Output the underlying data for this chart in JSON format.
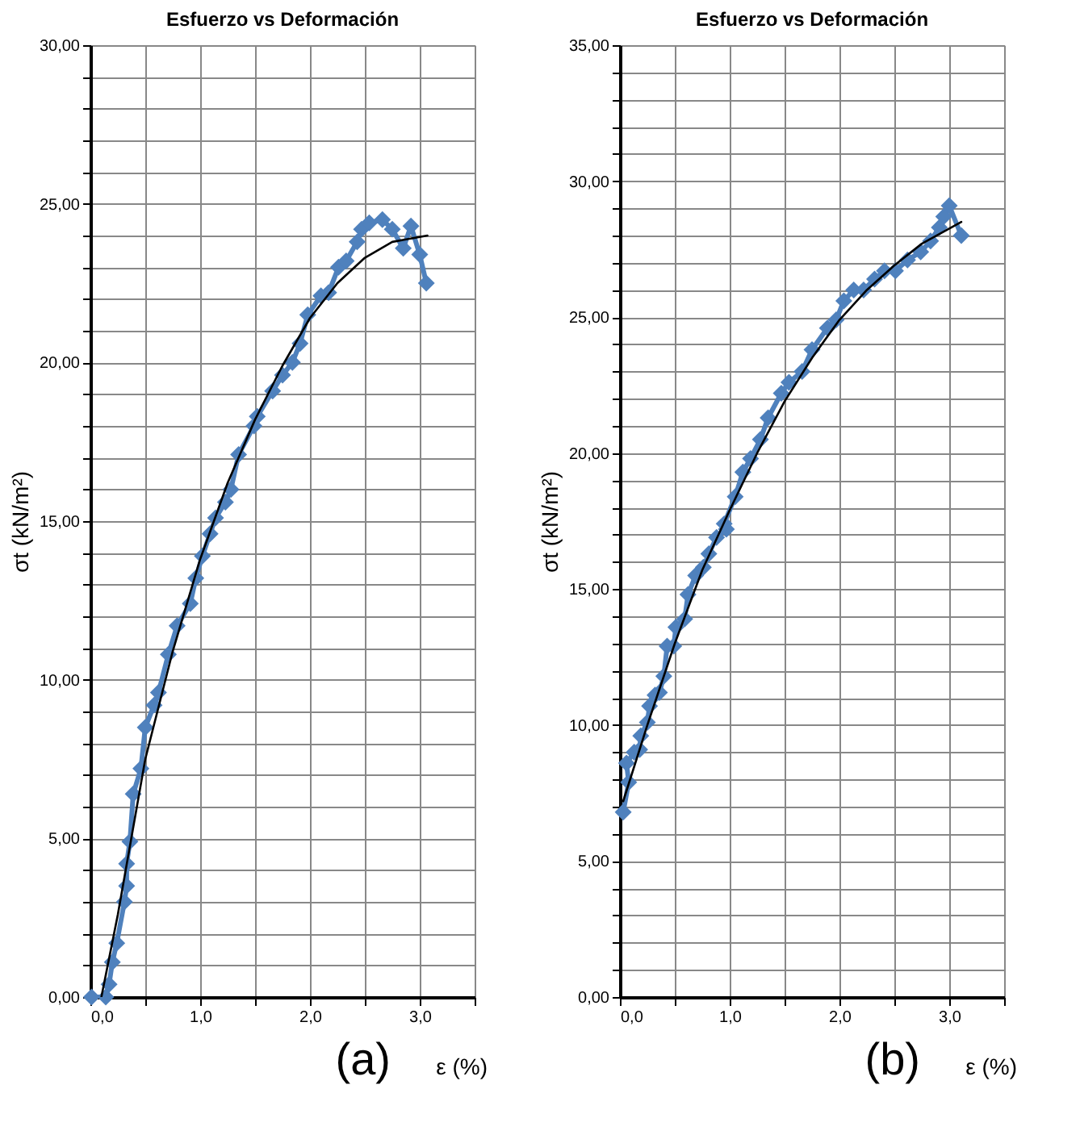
{
  "chart_data": [
    {
      "type": "line",
      "title": "Esfuerzo vs Deformación",
      "xlabel": "ε (%)",
      "ylabel": "σt (kN/m²)",
      "annotations": [
        "(a)"
      ],
      "xlim": [
        0,
        3.5
      ],
      "ylim": [
        0,
        30
      ],
      "xticks": [
        {
          "value": 0,
          "label": "0,0"
        },
        {
          "value": 0.5,
          "label": null
        },
        {
          "value": 1,
          "label": "1,0"
        },
        {
          "value": 1.5,
          "label": null
        },
        {
          "value": 2,
          "label": "2,0"
        },
        {
          "value": 2.5,
          "label": null
        },
        {
          "value": 3,
          "label": "3,0"
        },
        {
          "value": 3.5,
          "label": null
        }
      ],
      "yticks": [
        {
          "value": 0,
          "label": "0,00"
        },
        {
          "value": 1,
          "label": null
        },
        {
          "value": 2,
          "label": null
        },
        {
          "value": 3,
          "label": null
        },
        {
          "value": 4,
          "label": null
        },
        {
          "value": 5,
          "label": "5,00"
        },
        {
          "value": 6,
          "label": null
        },
        {
          "value": 7,
          "label": null
        },
        {
          "value": 8,
          "label": null
        },
        {
          "value": 9,
          "label": null
        },
        {
          "value": 10,
          "label": "10,00"
        },
        {
          "value": 11,
          "label": null
        },
        {
          "value": 12,
          "label": null
        },
        {
          "value": 13,
          "label": null
        },
        {
          "value": 14,
          "label": null
        },
        {
          "value": 15,
          "label": "15,00"
        },
        {
          "value": 16,
          "label": null
        },
        {
          "value": 17,
          "label": null
        },
        {
          "value": 18,
          "label": null
        },
        {
          "value": 19,
          "label": null
        },
        {
          "value": 20,
          "label": "20,00"
        },
        {
          "value": 21,
          "label": null
        },
        {
          "value": 22,
          "label": null
        },
        {
          "value": 23,
          "label": null
        },
        {
          "value": 24,
          "label": null
        },
        {
          "value": 25,
          "label": "25,00"
        },
        {
          "value": 26,
          "label": null
        },
        {
          "value": 27,
          "label": null
        },
        {
          "value": 28,
          "label": null
        },
        {
          "value": 29,
          "label": null
        },
        {
          "value": 30,
          "label": "30,00"
        }
      ],
      "grid": true,
      "series": [
        {
          "color": "#4f81bd",
          "marker": "diamond",
          "line_style": "solid",
          "x": [
            0.01,
            0.14,
            0.17,
            0.2,
            0.24,
            0.31,
            0.33,
            0.33,
            0.36,
            0.39,
            0.46,
            0.5,
            0.58,
            0.62,
            0.71,
            0.79,
            0.91,
            0.96,
            1.02,
            1.09,
            1.14,
            1.23,
            1.28,
            1.35,
            1.49,
            1.52,
            1.66,
            1.75,
            1.84,
            1.91,
            1.98,
            2.1,
            2.17,
            2.26,
            2.33,
            2.43,
            2.47,
            2.54,
            2.66,
            2.75,
            2.85,
            2.92,
            3.0,
            3.06
          ],
          "values": [
            0,
            0,
            0.4,
            1.1,
            1.7,
            3.0,
            3.5,
            4.2,
            4.9,
            6.4,
            7.2,
            8.5,
            9.2,
            9.6,
            10.8,
            11.7,
            12.4,
            13.2,
            13.9,
            14.6,
            15.1,
            15.6,
            16.0,
            17.1,
            18.0,
            18.3,
            19.1,
            19.6,
            20.0,
            20.6,
            21.5,
            22.1,
            22.2,
            23.0,
            23.2,
            23.8,
            24.2,
            24.4,
            24.5,
            24.2,
            23.6,
            24.3,
            23.4,
            22.5
          ]
        },
        {
          "color": "#000000",
          "marker": "none",
          "line_style": "solid",
          "x": [
            0.1,
            0.25,
            0.5,
            0.75,
            1.0,
            1.25,
            1.5,
            1.75,
            2.0,
            2.25,
            2.5,
            2.75,
            3.07
          ],
          "values": [
            0,
            2.6,
            7.5,
            10.9,
            13.8,
            16.2,
            18.2,
            19.9,
            21.4,
            22.5,
            23.3,
            23.8,
            24.0
          ]
        }
      ]
    },
    {
      "type": "line",
      "title": "Esfuerzo vs Deformación",
      "xlabel": "ε (%)",
      "ylabel": "σt (kN/m²)",
      "annotations": [
        "(b)"
      ],
      "xlim": [
        0,
        3.5
      ],
      "ylim": [
        0,
        35
      ],
      "xticks": [
        {
          "value": 0,
          "label": "0,0"
        },
        {
          "value": 0.5,
          "label": null
        },
        {
          "value": 1,
          "label": "1,0"
        },
        {
          "value": 1.5,
          "label": null
        },
        {
          "value": 2,
          "label": "2,0"
        },
        {
          "value": 2.5,
          "label": null
        },
        {
          "value": 3,
          "label": "3,0"
        },
        {
          "value": 3.5,
          "label": null
        }
      ],
      "yticks": [
        {
          "value": 0,
          "label": "0,00"
        },
        {
          "value": 1,
          "label": null
        },
        {
          "value": 2,
          "label": null
        },
        {
          "value": 3,
          "label": null
        },
        {
          "value": 4,
          "label": null
        },
        {
          "value": 5,
          "label": "5,00"
        },
        {
          "value": 6,
          "label": null
        },
        {
          "value": 7,
          "label": null
        },
        {
          "value": 8,
          "label": null
        },
        {
          "value": 9,
          "label": null
        },
        {
          "value": 10,
          "label": "10,00"
        },
        {
          "value": 11,
          "label": null
        },
        {
          "value": 12,
          "label": null
        },
        {
          "value": 13,
          "label": null
        },
        {
          "value": 14,
          "label": null
        },
        {
          "value": 15,
          "label": "15,00"
        },
        {
          "value": 16,
          "label": null
        },
        {
          "value": 17,
          "label": null
        },
        {
          "value": 18,
          "label": null
        },
        {
          "value": 19,
          "label": null
        },
        {
          "value": 20,
          "label": "20,00"
        },
        {
          "value": 21,
          "label": null
        },
        {
          "value": 22,
          "label": null
        },
        {
          "value": 23,
          "label": null
        },
        {
          "value": 24,
          "label": null
        },
        {
          "value": 25,
          "label": "25,00"
        },
        {
          "value": 26,
          "label": null
        },
        {
          "value": 27,
          "label": null
        },
        {
          "value": 28,
          "label": null
        },
        {
          "value": 29,
          "label": null
        },
        {
          "value": 30,
          "label": "30,00"
        },
        {
          "value": 31,
          "label": null
        },
        {
          "value": 32,
          "label": null
        },
        {
          "value": 33,
          "label": null
        },
        {
          "value": 34,
          "label": null
        },
        {
          "value": 35,
          "label": "35,00"
        }
      ],
      "grid": true,
      "series": [
        {
          "color": "#4f81bd",
          "marker": "diamond",
          "line_style": "solid",
          "x": [
            0.03,
            0.08,
            0.06,
            0.13,
            0.18,
            0.19,
            0.25,
            0.27,
            0.32,
            0.36,
            0.4,
            0.43,
            0.49,
            0.51,
            0.59,
            0.62,
            0.69,
            0.76,
            0.81,
            0.88,
            0.97,
            0.95,
            1.05,
            1.12,
            1.19,
            1.28,
            1.35,
            1.47,
            1.54,
            1.66,
            1.75,
            1.89,
            1.97,
            2.04,
            2.13,
            2.22,
            2.32,
            2.41,
            2.51,
            2.62,
            2.74,
            2.83,
            2.91,
            2.95,
            3.0,
            3.11
          ],
          "values": [
            6.8,
            7.9,
            8.6,
            9.0,
            9.1,
            9.6,
            10.1,
            10.7,
            11.1,
            11.2,
            11.8,
            12.9,
            12.9,
            13.6,
            13.9,
            14.8,
            15.5,
            15.8,
            16.3,
            16.9,
            17.2,
            17.4,
            18.4,
            19.3,
            19.8,
            20.5,
            21.3,
            22.2,
            22.6,
            23.0,
            23.8,
            24.6,
            24.9,
            25.6,
            26.0,
            26.0,
            26.4,
            26.7,
            26.7,
            27.1,
            27.4,
            27.8,
            28.3,
            28.7,
            29.1,
            28.0
          ]
        },
        {
          "color": "#000000",
          "marker": "none",
          "line_style": "solid",
          "x": [
            0.03,
            0.25,
            0.5,
            0.75,
            1.0,
            1.25,
            1.5,
            1.75,
            2.0,
            2.25,
            2.5,
            2.75,
            3.11
          ],
          "values": [
            7.2,
            10.0,
            13.0,
            15.7,
            17.9,
            20.0,
            21.9,
            23.5,
            24.9,
            26.0,
            26.9,
            27.7,
            28.5
          ]
        }
      ]
    }
  ]
}
